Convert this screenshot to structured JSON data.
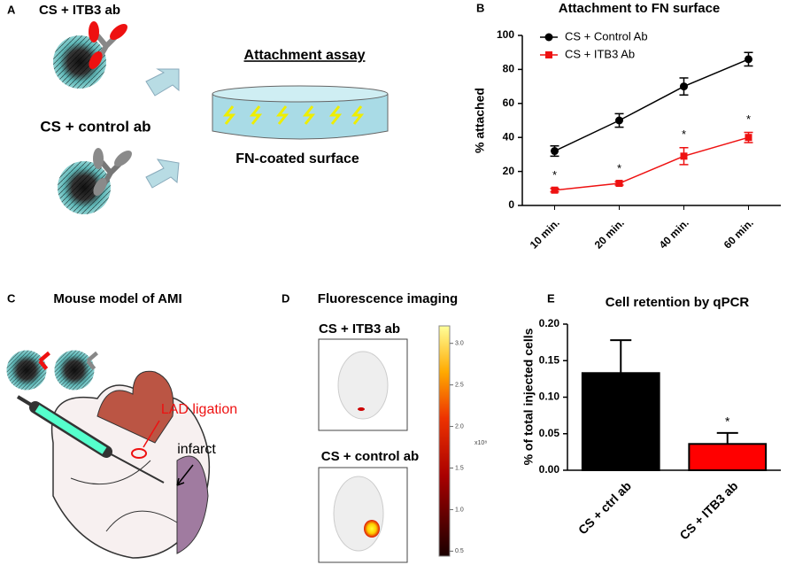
{
  "panel_a": {
    "letter": "A",
    "title": "CS + ITB3 ab",
    "control_label": "CS + control ab",
    "assay_title": "Attachment assay",
    "surface_label": "FN-coated surface"
  },
  "panel_c": {
    "letter": "C",
    "title": "Mouse model of AMI",
    "lad_label": "LAD ligation",
    "infarct_label": "infarct"
  },
  "panel_d": {
    "letter": "D",
    "title": "Fluorescence imaging",
    "top_label": "CS + ITB3 ab",
    "bottom_label": "CS + control ab",
    "colorbar_lim": [
      0.44,
      3.21
    ],
    "colorbar_ticks": [
      {
        "value": 0.5,
        "label": "0.5"
      },
      {
        "value": 1,
        "label": "1.0"
      },
      {
        "value": 1.5,
        "label": "1.5"
      },
      {
        "value": 2,
        "label": "2.0"
      },
      {
        "value": 2.5,
        "label": "2.5"
      },
      {
        "value": 3,
        "label": "3.0"
      }
    ],
    "colorbar_unit": "x10⁸"
  },
  "chart_data": [
    {
      "type": "line",
      "letter": "B",
      "title": "Attachment to FN surface",
      "ylabel": "% attached",
      "categories": [
        "10 min.",
        "20 min.",
        "40 min.",
        "60 min."
      ],
      "series": [
        {
          "name": "CS + Control Ab",
          "color": "#000000",
          "marker": "circle",
          "values": [
            32,
            50,
            70,
            86
          ],
          "errors": [
            3,
            4,
            5,
            4
          ]
        },
        {
          "name": "CS + ITB3 Ab",
          "color": "#ee1111",
          "marker": "square",
          "values": [
            9,
            13,
            29,
            40
          ],
          "errors": [
            1,
            1,
            5,
            3
          ],
          "annotations": [
            "*",
            "*",
            "*",
            "*"
          ]
        }
      ],
      "ylim": [
        0,
        100
      ],
      "yticks": [
        0,
        20,
        40,
        60,
        80,
        100
      ],
      "legend": "upper left"
    },
    {
      "type": "bar",
      "letter": "E",
      "title": "Cell retention by qPCR",
      "ylabel": "% of total injected cells",
      "categories": [
        "CS + ctrl ab",
        "CS + ITB3 ab"
      ],
      "values": [
        0.133,
        0.036
      ],
      "errors": [
        0.045,
        0.015
      ],
      "colors": [
        "#000000",
        "#ff0000"
      ],
      "annotations": [
        null,
        "*"
      ],
      "ylim": [
        0,
        0.2
      ],
      "yticks": [
        {
          "value": 0,
          "label": "0.00"
        },
        {
          "value": 0.05,
          "label": "0.05"
        },
        {
          "value": 0.1,
          "label": "0.10"
        },
        {
          "value": 0.15,
          "label": "0.15"
        },
        {
          "value": 0.2,
          "label": "0.20"
        }
      ]
    }
  ]
}
